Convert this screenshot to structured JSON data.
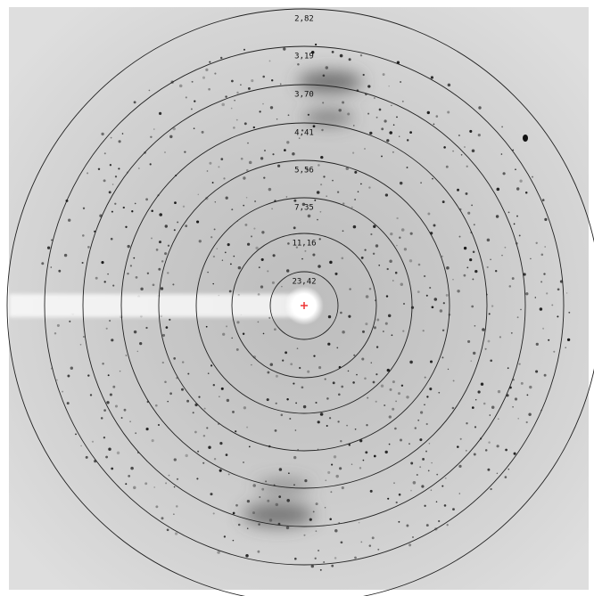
{
  "rings": [
    {
      "label": "2,82"
    },
    {
      "label": "3,19"
    },
    {
      "label": "3,70"
    },
    {
      "label": "4,41"
    },
    {
      "label": "5,56"
    },
    {
      "label": "7,35"
    },
    {
      "label": "11,16"
    },
    {
      "label": "23,42"
    }
  ]
}
